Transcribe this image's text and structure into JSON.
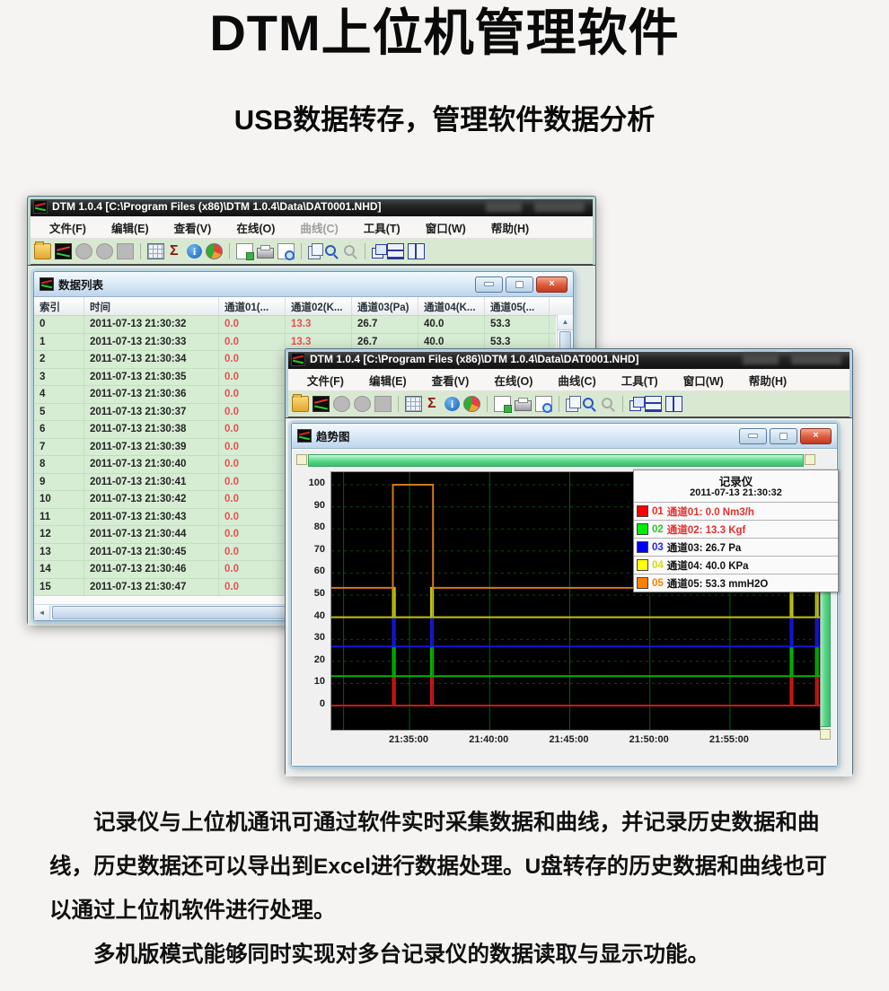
{
  "header": {
    "title": "DTM上位机管理软件",
    "subtitle": "USB数据转存，管理软件数据分析"
  },
  "app": {
    "window_title": "DTM 1.0.4 [C:\\Program Files (x86)\\DTM 1.0.4\\Data\\DAT0001.NHD]",
    "menu_items": [
      "文件(F)",
      "编辑(E)",
      "查看(V)",
      "在线(O)",
      "曲线(C)",
      "工具(T)",
      "窗口(W)",
      "帮助(H)"
    ],
    "menu_disabled_window1": "曲线(C)",
    "toolbar_groups": [
      [
        "open-folder",
        "chart-logo",
        "record-a",
        "record-b",
        "stop"
      ],
      [
        "data-grid",
        "sigma",
        "info",
        "pie-chart"
      ],
      [
        "export",
        "print",
        "print-preview"
      ],
      [
        "copy",
        "zoom-in",
        "zoom-out"
      ],
      [
        "cascade-windows",
        "tile-horizontal",
        "tile-vertical"
      ]
    ],
    "toolbar_disabled": [
      "record-a",
      "record-b",
      "stop",
      "zoom-out"
    ]
  },
  "data_window": {
    "title": "数据列表",
    "columns": [
      "索引",
      "时间",
      "通道01(...",
      "通道02(K...",
      "通道03(Pa)",
      "通道04(K...",
      "通道05(..."
    ],
    "red_value_columns": [
      2,
      3
    ],
    "rows": [
      [
        "0",
        "2011-07-13 21:30:32",
        "0.0",
        "13.3",
        "26.7",
        "40.0",
        "53.3"
      ],
      [
        "1",
        "2011-07-13 21:30:33",
        "0.0",
        "13.3",
        "26.7",
        "40.0",
        "53.3"
      ],
      [
        "2",
        "2011-07-13 21:30:34",
        "0.0",
        "",
        "",
        "",
        ""
      ],
      [
        "3",
        "2011-07-13 21:30:35",
        "0.0",
        "",
        "",
        "",
        ""
      ],
      [
        "4",
        "2011-07-13 21:30:36",
        "0.0",
        "",
        "",
        "",
        ""
      ],
      [
        "5",
        "2011-07-13 21:30:37",
        "0.0",
        "",
        "",
        "",
        ""
      ],
      [
        "6",
        "2011-07-13 21:30:38",
        "0.0",
        "",
        "",
        "",
        ""
      ],
      [
        "7",
        "2011-07-13 21:30:39",
        "0.0",
        "",
        "",
        "",
        ""
      ],
      [
        "8",
        "2011-07-13 21:30:40",
        "0.0",
        "",
        "",
        "",
        ""
      ],
      [
        "9",
        "2011-07-13 21:30:41",
        "0.0",
        "",
        "",
        "",
        ""
      ],
      [
        "10",
        "2011-07-13 21:30:42",
        "0.0",
        "",
        "",
        "",
        ""
      ],
      [
        "11",
        "2011-07-13 21:30:43",
        "0.0",
        "",
        "",
        "",
        ""
      ],
      [
        "12",
        "2011-07-13 21:30:44",
        "0.0",
        "",
        "",
        "",
        ""
      ],
      [
        "13",
        "2011-07-13 21:30:45",
        "0.0",
        "",
        "",
        "",
        ""
      ],
      [
        "14",
        "2011-07-13 21:30:46",
        "0.0",
        "",
        "",
        "",
        ""
      ],
      [
        "15",
        "2011-07-13 21:30:47",
        "0.0",
        "",
        "",
        "",
        ""
      ]
    ]
  },
  "trend_window": {
    "title": "趋势图",
    "legend": {
      "title": "记录仪",
      "timestamp": "2011-07-13 21:30:32",
      "entries": [
        {
          "num": "01",
          "swatch": "#ff0000",
          "num_color": "#ff2020",
          "text": "通道01: 0.0 Nm3/h",
          "text_color": "#e63030"
        },
        {
          "num": "02",
          "swatch": "#00ee00",
          "num_color": "#22cc22",
          "text": "通道02: 13.3 Kgf",
          "text_color": "#e63030"
        },
        {
          "num": "03",
          "swatch": "#0000ff",
          "num_color": "#2222ff",
          "text": "通道03: 26.7 Pa",
          "text_color": "#111111"
        },
        {
          "num": "04",
          "swatch": "#ffff00",
          "num_color": "#dddd00",
          "text": "通道04: 40.0 KPa",
          "text_color": "#111111"
        },
        {
          "num": "05",
          "swatch": "#ff8000",
          "num_color": "#ff8000",
          "text": "通道05: 53.3 mmH2O",
          "text_color": "#111111"
        }
      ]
    }
  },
  "chart_data": {
    "type": "line",
    "title": "记录仪",
    "ylim": [
      0,
      100
    ],
    "y_ticks": [
      0,
      10,
      20,
      30,
      40,
      50,
      60,
      70,
      80,
      90,
      100
    ],
    "x_tick_labels": [
      "21:35:00",
      "21:40:00",
      "21:45:00",
      "21:50:00",
      "21:55:00"
    ],
    "x_tick_pct": [
      16,
      32.4,
      48.8,
      65.2,
      81.6
    ],
    "extra_vgrid_pct": [
      2.5
    ],
    "grid": true,
    "legend_position": "top-right",
    "plot_bg": "#000000",
    "grid_color": "#0a4a0a",
    "series": [
      {
        "name": "通道01",
        "unit": "Nm3/h",
        "color": "#cc1616",
        "current": 0.0,
        "points": [
          [
            0,
            0
          ],
          [
            12.6,
            0
          ],
          [
            12.6,
            13.3
          ],
          [
            13.0,
            13.3
          ],
          [
            13.0,
            0
          ],
          [
            20.4,
            0
          ],
          [
            20.4,
            13.3
          ],
          [
            20.8,
            13.3
          ],
          [
            20.8,
            0
          ],
          [
            94.0,
            0
          ],
          [
            94.0,
            13.3
          ],
          [
            94.4,
            13.3
          ],
          [
            94.4,
            0
          ],
          [
            99.2,
            0
          ],
          [
            99.2,
            13.3
          ],
          [
            99.6,
            13.3
          ],
          [
            99.6,
            0
          ],
          [
            100,
            0
          ]
        ]
      },
      {
        "name": "通道02",
        "unit": "Kgf",
        "color": "#00b400",
        "current": 13.3,
        "points": [
          [
            0,
            13.3
          ],
          [
            12.6,
            13.3
          ],
          [
            12.6,
            26.7
          ],
          [
            13.0,
            26.7
          ],
          [
            13.0,
            13.3
          ],
          [
            20.4,
            13.3
          ],
          [
            20.4,
            26.7
          ],
          [
            20.8,
            26.7
          ],
          [
            20.8,
            13.3
          ],
          [
            94.0,
            13.3
          ],
          [
            94.0,
            26.7
          ],
          [
            94.4,
            26.7
          ],
          [
            94.4,
            13.3
          ],
          [
            99.2,
            13.3
          ],
          [
            99.2,
            26.7
          ],
          [
            99.6,
            26.7
          ],
          [
            99.6,
            13.3
          ],
          [
            100,
            13.3
          ]
        ]
      },
      {
        "name": "通道03",
        "unit": "Pa",
        "color": "#1616d8",
        "current": 26.7,
        "points": [
          [
            0,
            26.7
          ],
          [
            12.6,
            26.7
          ],
          [
            12.6,
            40
          ],
          [
            13.0,
            40
          ],
          [
            13.0,
            26.7
          ],
          [
            20.4,
            26.7
          ],
          [
            20.4,
            40
          ],
          [
            20.8,
            40
          ],
          [
            20.8,
            26.7
          ],
          [
            94.0,
            26.7
          ],
          [
            94.0,
            40
          ],
          [
            94.4,
            40
          ],
          [
            94.4,
            26.7
          ],
          [
            99.2,
            26.7
          ],
          [
            99.2,
            40
          ],
          [
            99.6,
            40
          ],
          [
            99.6,
            26.7
          ],
          [
            100,
            26.7
          ]
        ]
      },
      {
        "name": "通道04",
        "unit": "KPa",
        "color": "#c2c210",
        "current": 40.0,
        "points": [
          [
            0,
            40
          ],
          [
            12.6,
            40
          ],
          [
            12.6,
            53.3
          ],
          [
            13.0,
            53.3
          ],
          [
            13.0,
            40
          ],
          [
            20.4,
            40
          ],
          [
            20.4,
            53.3
          ],
          [
            20.8,
            53.3
          ],
          [
            20.8,
            40
          ],
          [
            94.0,
            40
          ],
          [
            94.0,
            53.3
          ],
          [
            94.4,
            53.3
          ],
          [
            94.4,
            40
          ],
          [
            99.2,
            40
          ],
          [
            99.2,
            53.3
          ],
          [
            99.6,
            53.3
          ],
          [
            99.6,
            40
          ],
          [
            100,
            40
          ]
        ]
      },
      {
        "name": "通道05",
        "unit": "mmH2O",
        "color": "#d2781e",
        "current": 53.3,
        "points": [
          [
            0,
            53.3
          ],
          [
            12.6,
            53.3
          ],
          [
            12.6,
            100
          ],
          [
            20.8,
            100
          ],
          [
            20.8,
            53.3
          ],
          [
            94.0,
            53.3
          ],
          [
            94.0,
            100
          ],
          [
            99.6,
            100
          ],
          [
            99.6,
            53.3
          ],
          [
            100,
            53.3
          ]
        ]
      }
    ]
  },
  "footer": {
    "paragraph1": "记录仪与上位机通讯可通过软件实时采集数据和曲线，并记录历史数据和曲线，历史数据还可以导出到Excel进行数据处理。U盘转存的历史数据和曲线也可以通过上位机软件进行处理。",
    "paragraph2": "多机版模式能够同时实现对多台记录仪的数据读取与显示功能。"
  }
}
